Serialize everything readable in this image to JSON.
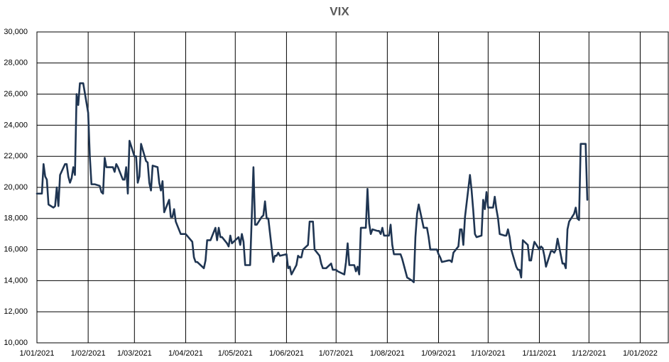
{
  "chart_data": {
    "type": "line",
    "title": "VIX",
    "color": "#1f3552",
    "grid": true,
    "xlim": [
      "2021-01-01",
      "2022-01-18"
    ],
    "xticks": [
      {
        "value": "2021-01-01",
        "label": "1/01/2021"
      },
      {
        "value": "2021-02-01",
        "label": "1/02/2021"
      },
      {
        "value": "2021-03-01",
        "label": "1/03/2021"
      },
      {
        "value": "2021-04-01",
        "label": "1/04/2021"
      },
      {
        "value": "2021-05-01",
        "label": "1/05/2021"
      },
      {
        "value": "2021-06-01",
        "label": "1/06/2021"
      },
      {
        "value": "2021-07-01",
        "label": "1/07/2021"
      },
      {
        "value": "2021-08-01",
        "label": "1/08/2021"
      },
      {
        "value": "2021-09-01",
        "label": "1/09/2021"
      },
      {
        "value": "2021-10-01",
        "label": "1/10/2021"
      },
      {
        "value": "2021-11-01",
        "label": "1/11/2021"
      },
      {
        "value": "2021-12-01",
        "label": "1/12/2021"
      },
      {
        "value": "2022-01-01",
        "label": "1/01/2022"
      }
    ],
    "ylim": [
      10000,
      30000
    ],
    "yticks": [
      {
        "value": 10000,
        "label": "10,000"
      },
      {
        "value": 12000,
        "label": "12,000"
      },
      {
        "value": 14000,
        "label": "14,000"
      },
      {
        "value": 16000,
        "label": "16,000"
      },
      {
        "value": 18000,
        "label": "18,000"
      },
      {
        "value": 20000,
        "label": "20,000"
      },
      {
        "value": 22000,
        "label": "22,000"
      },
      {
        "value": 24000,
        "label": "24,000"
      },
      {
        "value": 26000,
        "label": "26,000"
      },
      {
        "value": 28000,
        "label": "28,000"
      },
      {
        "value": 30000,
        "label": "30,000"
      }
    ],
    "x": [
      "2021-01-01",
      "2021-01-04",
      "2021-01-05",
      "2021-01-06",
      "2021-01-07",
      "2021-01-08",
      "2021-01-11",
      "2021-01-12",
      "2021-01-13",
      "2021-01-14",
      "2021-01-15",
      "2021-01-18",
      "2021-01-19",
      "2021-01-20",
      "2021-01-21",
      "2021-01-22",
      "2021-01-23",
      "2021-01-24",
      "2021-01-25",
      "2021-01-26",
      "2021-01-27",
      "2021-01-29",
      "2021-02-01",
      "2021-02-02",
      "2021-02-03",
      "2021-02-05",
      "2021-02-08",
      "2021-02-09",
      "2021-02-10",
      "2021-02-11",
      "2021-02-12",
      "2021-02-16",
      "2021-02-17",
      "2021-02-18",
      "2021-02-19",
      "2021-02-22",
      "2021-02-23",
      "2021-02-24",
      "2021-02-25",
      "2021-02-26",
      "2021-03-01",
      "2021-03-02",
      "2021-03-03",
      "2021-03-04",
      "2021-03-05",
      "2021-03-08",
      "2021-03-09",
      "2021-03-10",
      "2021-03-11",
      "2021-03-12",
      "2021-03-15",
      "2021-03-16",
      "2021-03-17",
      "2021-03-18",
      "2021-03-19",
      "2021-03-22",
      "2021-03-23",
      "2021-03-24",
      "2021-03-25",
      "2021-03-26",
      "2021-03-29",
      "2021-03-31",
      "2021-04-01",
      "2021-04-05",
      "2021-04-06",
      "2021-04-07",
      "2021-04-08",
      "2021-04-09",
      "2021-04-12",
      "2021-04-13",
      "2021-04-14",
      "2021-04-15",
      "2021-04-16",
      "2021-04-19",
      "2021-04-20",
      "2021-04-21",
      "2021-04-22",
      "2021-04-23",
      "2021-04-26",
      "2021-04-27",
      "2021-04-28",
      "2021-04-29",
      "2021-05-03",
      "2021-05-04",
      "2021-05-05",
      "2021-05-06",
      "2021-05-07",
      "2021-05-10",
      "2021-05-12",
      "2021-05-13",
      "2021-05-14",
      "2021-05-17",
      "2021-05-18",
      "2021-05-19",
      "2021-05-20",
      "2021-05-21",
      "2021-05-24",
      "2021-05-25",
      "2021-05-26",
      "2021-05-27",
      "2021-05-28",
      "2021-06-01",
      "2021-06-02",
      "2021-06-03",
      "2021-06-04",
      "2021-06-07",
      "2021-06-08",
      "2021-06-09",
      "2021-06-10",
      "2021-06-11",
      "2021-06-14",
      "2021-06-15",
      "2021-06-16",
      "2021-06-17",
      "2021-06-18",
      "2021-06-21",
      "2021-06-22",
      "2021-06-23",
      "2021-06-24",
      "2021-06-25",
      "2021-06-28",
      "2021-06-29",
      "2021-06-30",
      "2021-07-01",
      "2021-07-02",
      "2021-07-06",
      "2021-07-07",
      "2021-07-08",
      "2021-07-09",
      "2021-07-12",
      "2021-07-13",
      "2021-07-14",
      "2021-07-15",
      "2021-07-16",
      "2021-07-19",
      "2021-07-20",
      "2021-07-21",
      "2021-07-22",
      "2021-07-23",
      "2021-07-26",
      "2021-07-27",
      "2021-07-28",
      "2021-07-29",
      "2021-07-30",
      "2021-08-02",
      "2021-08-03",
      "2021-08-04",
      "2021-08-05",
      "2021-08-06",
      "2021-08-09",
      "2021-08-10",
      "2021-08-11",
      "2021-08-12",
      "2021-08-13",
      "2021-08-16",
      "2021-08-17",
      "2021-08-18",
      "2021-08-19",
      "2021-08-20",
      "2021-08-23",
      "2021-08-24",
      "2021-08-25",
      "2021-08-26",
      "2021-08-27",
      "2021-08-30",
      "2021-08-31",
      "2021-09-01",
      "2021-09-02",
      "2021-09-03",
      "2021-09-07",
      "2021-09-08",
      "2021-09-09",
      "2021-09-10",
      "2021-09-13",
      "2021-09-14",
      "2021-09-15",
      "2021-09-16",
      "2021-09-17",
      "2021-09-20",
      "2021-09-21",
      "2021-09-22",
      "2021-09-23",
      "2021-09-24",
      "2021-09-27",
      "2021-09-28",
      "2021-09-29",
      "2021-09-30",
      "2021-10-01",
      "2021-10-04",
      "2021-10-05",
      "2021-10-06",
      "2021-10-07",
      "2021-10-08",
      "2021-10-11",
      "2021-10-12",
      "2021-10-13",
      "2021-10-14",
      "2021-10-15",
      "2021-10-18",
      "2021-10-19",
      "2021-10-20",
      "2021-10-21",
      "2021-10-22",
      "2021-10-25",
      "2021-10-26",
      "2021-10-27",
      "2021-10-28",
      "2021-10-29",
      "2021-11-01",
      "2021-11-02",
      "2021-11-03",
      "2021-11-04",
      "2021-11-05",
      "2021-11-08",
      "2021-11-09",
      "2021-11-10",
      "2021-11-11",
      "2021-11-12",
      "2021-11-15",
      "2021-11-16",
      "2021-11-17",
      "2021-11-18",
      "2021-11-19",
      "2021-11-22",
      "2021-11-23",
      "2021-11-24",
      "2021-11-25",
      "2021-11-26",
      "2021-11-29",
      "2021-11-30"
    ],
    "values": [
      19600,
      19600,
      21500,
      20700,
      20500,
      18900,
      18700,
      18800,
      20000,
      18800,
      20800,
      21500,
      21500,
      20700,
      20300,
      20600,
      21300,
      20800,
      26000,
      25300,
      26700,
      26700,
      24800,
      22000,
      20200,
      20200,
      20100,
      19700,
      19600,
      21900,
      21300,
      21300,
      21000,
      21500,
      21300,
      20500,
      20500,
      21300,
      19600,
      23000,
      22000,
      22000,
      20300,
      20700,
      22800,
      21700,
      21600,
      20300,
      19800,
      21400,
      21300,
      20300,
      19800,
      20400,
      18400,
      19200,
      18100,
      18100,
      18600,
      17800,
      17000,
      17000,
      17000,
      16500,
      15500,
      15200,
      15200,
      15100,
      14800,
      15300,
      16600,
      16600,
      16600,
      17400,
      16600,
      17400,
      16800,
      16800,
      16400,
      16200,
      16900,
      16400,
      16800,
      16300,
      17000,
      16500,
      15000,
      15000,
      21300,
      17600,
      17600,
      18100,
      18200,
      19100,
      18000,
      18000,
      15200,
      15600,
      15600,
      15800,
      15600,
      15700,
      14800,
      14900,
      14400,
      15000,
      15600,
      15500,
      15500,
      16000,
      16300,
      17800,
      17800,
      17800,
      16000,
      15600,
      15100,
      14800,
      14800,
      14800,
      15100,
      14700,
      14700,
      14700,
      14600,
      14400,
      15200,
      16400,
      15000,
      15000,
      14600,
      14900,
      14400,
      17400,
      17400,
      19900,
      17700,
      17000,
      17300,
      17200,
      17200,
      17000,
      17400,
      16900,
      16900,
      17600,
      16300,
      15700,
      15700,
      15700,
      15400,
      15000,
      14600,
      14200,
      14000,
      13900,
      16800,
      18300,
      18900,
      17400,
      17400,
      17400,
      16800,
      16000,
      16000,
      16000,
      15700,
      15500,
      15200,
      15300,
      15300,
      15200,
      15800,
      16200,
      17300,
      17300,
      16300,
      18100,
      20800,
      19800,
      18500,
      17000,
      16800,
      16900,
      19200,
      18600,
      19700,
      18700,
      18700,
      19400,
      18600,
      18000,
      17000,
      16900,
      16900,
      17300,
      16800,
      16000,
      14900,
      14700,
      14700,
      14200,
      16600,
      16300,
      15300,
      15300,
      16000,
      16500,
      16000,
      16200,
      16100,
      15600,
      14900,
      15900,
      15900,
      15800,
      16000,
      16700,
      15100,
      15100,
      14800,
      17300,
      17800,
      18300,
      18700,
      18000,
      17900,
      22800,
      22800,
      19200
    ]
  }
}
